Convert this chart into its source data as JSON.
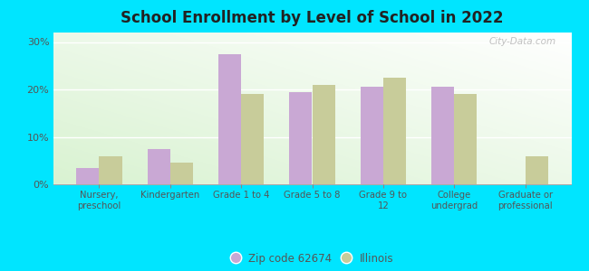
{
  "title": "School Enrollment by Level of School in 2022",
  "categories": [
    "Nursery,\npreschool",
    "Kindergarten",
    "Grade 1 to 4",
    "Grade 5 to 8",
    "Grade 9 to\n12",
    "College\nundergrad",
    "Graduate or\nprofessional"
  ],
  "zip_values": [
    3.5,
    7.5,
    27.5,
    19.5,
    20.5,
    20.5,
    0.0
  ],
  "il_values": [
    6.0,
    4.5,
    19.0,
    21.0,
    22.5,
    19.0,
    6.0
  ],
  "zip_color": "#c9a8d4",
  "il_color": "#c8cc9a",
  "bg_color": "#00e5ff",
  "ylabel_ticks": [
    "0%",
    "10%",
    "20%",
    "30%"
  ],
  "ytick_vals": [
    0,
    10,
    20,
    30
  ],
  "ylim": [
    0,
    32
  ],
  "legend_labels": [
    "Zip code 62674",
    "Illinois"
  ],
  "watermark": "City-Data.com",
  "bar_width": 0.32
}
